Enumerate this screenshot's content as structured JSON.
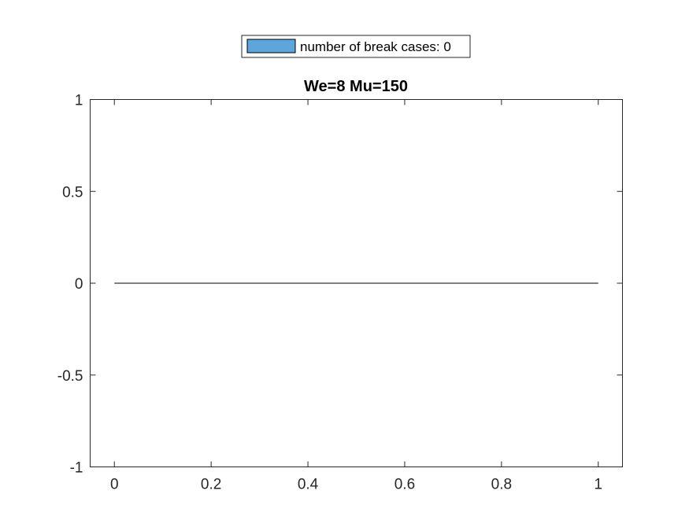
{
  "chart_data": {
    "type": "bar",
    "title": "We=8 Mu=150",
    "xlabel": "",
    "ylabel": "",
    "xlim": [
      -0.05,
      1.05
    ],
    "ylim": [
      -1,
      1
    ],
    "xticks": [
      0,
      0.2,
      0.4,
      0.6,
      0.8,
      1
    ],
    "xtick_labels": [
      "0",
      "0.2",
      "0.4",
      "0.6",
      "0.8",
      "1"
    ],
    "yticks": [
      -1,
      -0.5,
      0,
      0.5,
      1
    ],
    "ytick_labels": [
      "-1",
      "-0.5",
      "0",
      "0.5",
      "1"
    ],
    "series": [
      {
        "name": "number of break cases: 0",
        "color": "#5DA5DA",
        "x": [
          0,
          1
        ],
        "values": [
          0,
          0
        ]
      }
    ],
    "legend": {
      "placement": "top-center",
      "entries": [
        "number of break cases: 0"
      ]
    },
    "grid": false,
    "box": true
  }
}
